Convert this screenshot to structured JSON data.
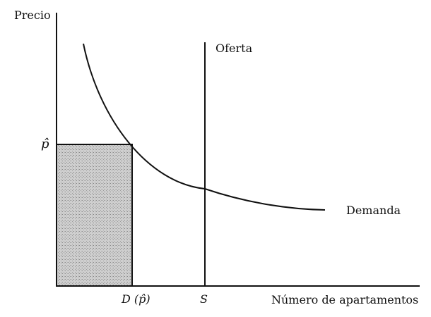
{
  "figure": {
    "y_axis_label": "Precio",
    "x_axis_label": "Número de apartamentos",
    "price_label": "p̂",
    "demand_at_price_label_prefix": "D (",
    "demand_at_price_label_arg": "p̂",
    "demand_at_price_label_suffix": ")",
    "supply_quantity_label": "S",
    "supply_curve_label": "Oferta",
    "demand_curve_label": "Demanda"
  },
  "colors": {
    "line": "#111111",
    "shaded_area": "#c9c9c9"
  }
}
